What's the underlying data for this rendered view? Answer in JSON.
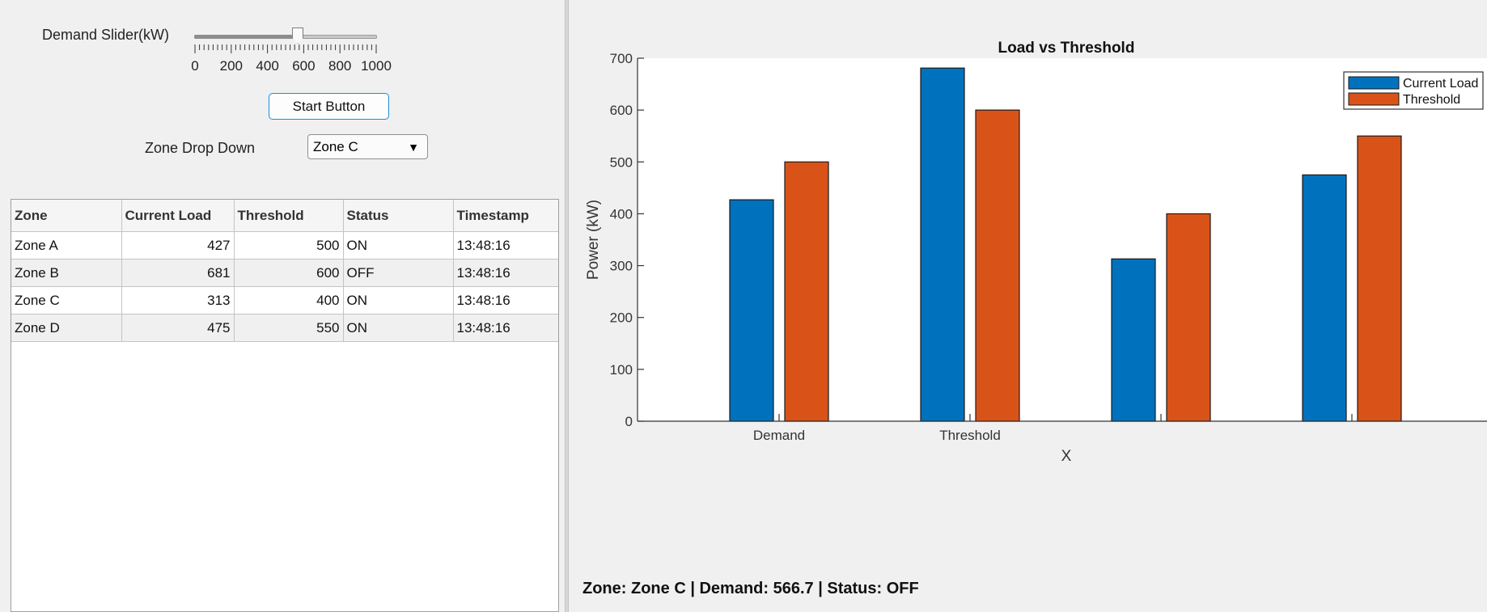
{
  "controls": {
    "slider_label": "Demand Slider(kW)",
    "slider_min": 0,
    "slider_max": 1000,
    "slider_value": 566.7,
    "slider_tick_labels": [
      "0",
      "200",
      "400",
      "600",
      "800",
      "1000"
    ],
    "start_button_label": "Start Button",
    "zone_label": "Zone Drop Down",
    "zone_selected": "Zone C"
  },
  "table": {
    "headers": [
      "Zone",
      "Current Load",
      "Threshold",
      "Status",
      "Timestamp"
    ],
    "rows": [
      [
        "Zone A",
        "427",
        "500",
        "ON",
        "13:48:16"
      ],
      [
        "Zone B",
        "681",
        "600",
        "OFF",
        "13:48:16"
      ],
      [
        "Zone C",
        "313",
        "400",
        "ON",
        "13:48:16"
      ],
      [
        "Zone D",
        "475",
        "550",
        "ON",
        "13:48:16"
      ]
    ]
  },
  "status_text": "Zone: Zone C | Demand: 566.7 | Status: OFF",
  "chart_data": {
    "type": "bar",
    "title": "Load vs Threshold",
    "xlabel": "X",
    "ylabel": "Power (kW)",
    "ylim": [
      0,
      700
    ],
    "yticks": [
      0,
      100,
      200,
      300,
      400,
      500,
      600,
      700
    ],
    "categories": [
      "Demand",
      "Threshold",
      "",
      ""
    ],
    "series": [
      {
        "name": "Current Load",
        "values": [
          427,
          681,
          313,
          475
        ],
        "color": "#0072BD"
      },
      {
        "name": "Threshold",
        "values": [
          500,
          600,
          400,
          550
        ],
        "color": "#D95319"
      }
    ],
    "legend_position": "top-right",
    "grid": false
  }
}
